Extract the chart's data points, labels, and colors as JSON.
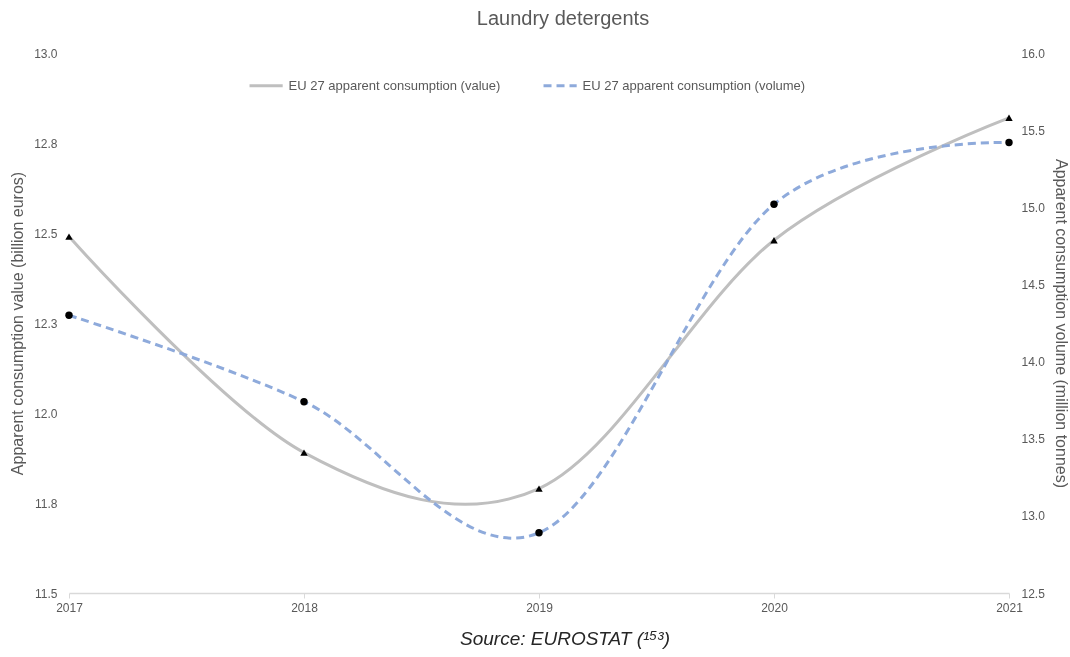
{
  "chart_data": {
    "type": "line",
    "title": "Laundry detergents",
    "ylabel": "Apparent consumption value (billion euros)",
    "y2label": "Apparent consumption volume (million tonnes)",
    "annotations": [
      "Source: EUROSTAT (¹⁵³)"
    ],
    "x": [
      2017,
      2018,
      2019,
      2020,
      2021
    ],
    "xlim": [
      2017,
      2021
    ],
    "xticks": [
      2017,
      2018,
      2019,
      2020,
      2021
    ],
    "ylim": [
      11.5,
      13
    ],
    "yticks": [
      11.5,
      {
        "value": 11.75,
        "label": "11.8"
      },
      {
        "value": 12,
        "label": "12.0"
      },
      {
        "value": 12.25,
        "label": "12.3"
      },
      12.5,
      {
        "value": 12.75,
        "label": "12.8"
      },
      {
        "value": 13,
        "label": "13.0"
      }
    ],
    "y2lim": [
      12.5,
      16
    ],
    "y2ticks": [
      12.5,
      {
        "value": 13,
        "label": "13.0"
      },
      13.5,
      {
        "value": 14,
        "label": "14.0"
      },
      14.5,
      {
        "value": 15,
        "label": "15.0"
      },
      15.5,
      {
        "value": 16,
        "label": "16.0"
      }
    ],
    "legend": "top",
    "series": [
      {
        "name": "EU 27 apparent consumption (value)",
        "color": "#bfbfbf",
        "marker": "triangle",
        "line_style": "solid",
        "values": [
          12.49,
          11.89,
          11.79,
          12.48,
          12.82
        ]
      },
      {
        "name": "EU 27 apparent consumption (volume)",
        "color": "#8eaadb",
        "marker": "circle",
        "line_style": "dashed",
        "axis": "y2",
        "values": [
          14.3,
          13.74,
          12.89,
          15.02,
          15.42
        ]
      }
    ]
  }
}
